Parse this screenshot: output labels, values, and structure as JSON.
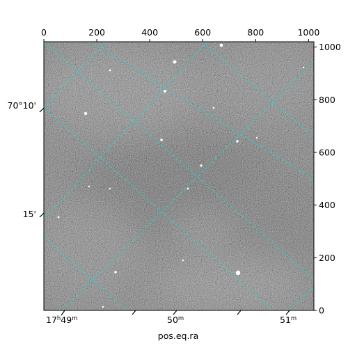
{
  "chart_data": {
    "type": "image",
    "xlabel": "pos.eq.ra",
    "ylabel": "",
    "pixel_axes": {
      "x_ticks": [
        0,
        200,
        400,
        600,
        800,
        1000
      ],
      "x_tick_labels": [
        "0",
        "200",
        "400",
        "600",
        "800",
        "1000"
      ],
      "y_ticks": [
        0,
        200,
        400,
        600,
        800,
        1000
      ],
      "y_tick_labels": [
        "0",
        "200",
        "400",
        "600",
        "800",
        "1000"
      ],
      "xlim": [
        0,
        1020
      ],
      "ylim": [
        0,
        1020
      ]
    },
    "ra_ticks": [
      {
        "label_main": "17",
        "label_h": "h",
        "label_mid": "49",
        "label_m": "m"
      },
      {
        "label_main": "50",
        "label_m": "m"
      },
      {
        "label_main": "51",
        "label_m": "m"
      }
    ],
    "dec_ticks": [
      {
        "label": "70°10'"
      },
      {
        "label": "15'"
      }
    ],
    "grid": true,
    "grid_color": "#00d0d0",
    "colormap": "gray"
  }
}
